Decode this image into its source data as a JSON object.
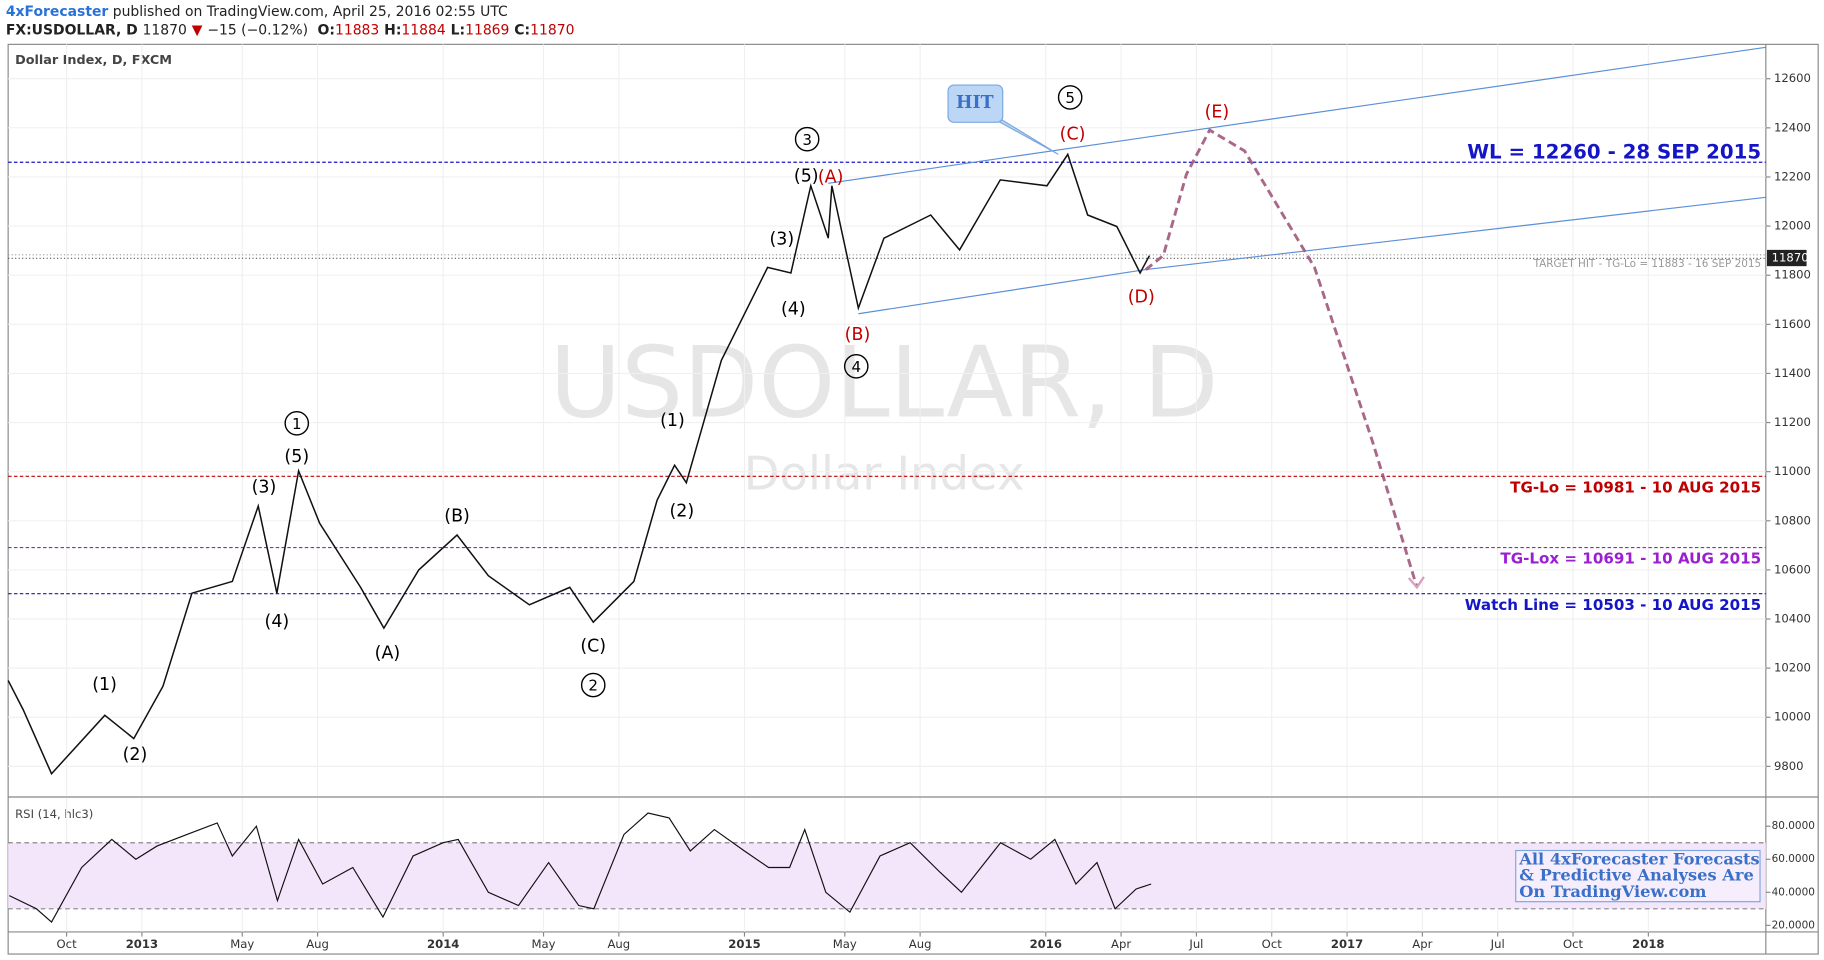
{
  "header": {
    "author": "4xForecaster",
    "published": " published on TradingView.com, April 25, 2016 02:55 UTC",
    "symbol": "FX:USDOLLAR, D",
    "last": "11870",
    "arrow": "▼",
    "change": "−15 (−0.12%)",
    "ohlc": [
      {
        "label": "O:",
        "value": "11883"
      },
      {
        "label": "H:",
        "value": "11884"
      },
      {
        "label": "L:",
        "value": "11869"
      },
      {
        "label": "C:",
        "value": "11870"
      }
    ]
  },
  "chart_data": [
    {
      "type": "line",
      "title": "Dollar Index, D, FXCM",
      "watermark": "USDOLLAR, D",
      "watermark_subtitle": "Dollar Index",
      "color": "#111111",
      "x": [
        2012.556,
        2012.606,
        2012.7,
        2012.877,
        2012.973,
        2013.07,
        2013.166,
        2013.3,
        2013.386,
        2013.448,
        2013.52,
        2013.59,
        2013.726,
        2013.803,
        2013.919,
        2014.046,
        2014.15,
        2014.286,
        2014.42,
        2014.498,
        2014.633,
        2014.71,
        2014.768,
        2014.807,
        2014.923,
        2015.077,
        2015.154,
        2015.22,
        2015.278,
        2015.29,
        2015.378,
        2015.463,
        2015.618,
        2015.714,
        2015.849,
        2016.004,
        2016.073,
        2016.139,
        2016.236,
        2016.313,
        2016.344
      ],
      "values": [
        10150,
        10031,
        9770,
        10008,
        9913,
        10126,
        10505,
        10553,
        10860,
        10505,
        11003,
        10790,
        10529,
        10363,
        10600,
        10742,
        10576,
        10458,
        10529,
        10387,
        10553,
        10884,
        11026,
        10955,
        11453,
        11832,
        11809,
        12164,
        11951,
        12164,
        11666,
        11951,
        12045,
        11903,
        12188,
        12164,
        12292,
        12045,
        11998,
        11809,
        11880
      ],
      "last_value": 11870,
      "xlim": [
        2012.556,
        2018.39
      ],
      "ylim": [
        9680,
        12740
      ],
      "yticks": [
        9800,
        10000,
        10200,
        10400,
        10600,
        10800,
        11000,
        11200,
        11400,
        11600,
        11800,
        12000,
        12200,
        12400,
        12600
      ],
      "xticks": [
        {
          "value": 2012.75,
          "label": "Oct"
        },
        2013,
        {
          "value": 2013.333,
          "label": "May"
        },
        {
          "value": 2013.583,
          "label": "Aug"
        },
        2014,
        {
          "value": 2014.333,
          "label": "May"
        },
        {
          "value": 2014.583,
          "label": "Aug"
        },
        2015,
        {
          "value": 2015.333,
          "label": "May"
        },
        {
          "value": 2015.583,
          "label": "Aug"
        },
        2016,
        {
          "value": 2016.25,
          "label": "Apr"
        },
        {
          "value": 2016.5,
          "label": "Jul"
        },
        {
          "value": 2016.75,
          "label": "Oct"
        },
        2017,
        {
          "value": 2017.25,
          "label": "Apr"
        },
        {
          "value": 2017.5,
          "label": "Jul"
        },
        {
          "value": 2017.75,
          "label": "Oct"
        },
        2018
      ],
      "levels": [
        {
          "value": 12260,
          "label": "WL = 12260 - 28 SEP 2015",
          "color": "#1515c8"
        },
        {
          "value": 11883,
          "label": "TARGET HIT - TG-Lo = 11883 - 16 SEP 2015",
          "color": "#999999"
        },
        {
          "value": 10981,
          "label": "TG-Lo = 10981 - 10 AUG 2015",
          "color": "#c00000"
        },
        {
          "value": 10691,
          "label": "TG-Lox = 10691 - 10 AUG 2015",
          "color": "#9b1fd1"
        },
        {
          "value": 10503,
          "label": "Watch Line = 10503 - 10 AUG 2015",
          "color": "#1515c8"
        }
      ],
      "trendlines": [
        {
          "points": [
            [
              2015.278,
              12174
            ],
            [
              2018.39,
              12728
            ]
          ],
          "color": "#5b8fd8"
        },
        {
          "points": [
            [
              2015.378,
              11643
            ],
            [
              2016.332,
              11823
            ]
          ],
          "color": "#5b8fd8"
        },
        {
          "points": [
            [
              2016.332,
              11823
            ],
            [
              2018.39,
              12117
            ]
          ],
          "color": "#5b8fd8"
        }
      ],
      "forecast": {
        "x": [
          2016.332,
          2016.39,
          2016.467,
          2016.544,
          2016.66,
          2016.892,
          2017.085,
          2017.232
        ],
        "values": [
          11823,
          11880,
          12211,
          12391,
          12306,
          11832,
          11121,
          10529
        ],
        "color": "#9b4d74"
      },
      "callout": {
        "text": "HIT",
        "x": 2016.042,
        "y": 12292
      },
      "annotations": [
        {
          "text": "1",
          "x": 2013.514,
          "y": 11197,
          "color": "#000000",
          "circled": true
        },
        {
          "text": "(5)",
          "x": 2013.514,
          "y": 11065,
          "color": "#000000",
          "circled": false
        },
        {
          "text": "(3)",
          "x": 2013.405,
          "y": 10941,
          "color": "#000000",
          "circled": false
        },
        {
          "text": "(4)",
          "x": 2013.448,
          "y": 10392,
          "color": "#000000",
          "circled": false
        },
        {
          "text": "(1)",
          "x": 2012.876,
          "y": 10136,
          "color": "#000000",
          "circled": false
        },
        {
          "text": "(2)",
          "x": 2012.977,
          "y": 9851,
          "color": "#000000",
          "circled": false
        },
        {
          "text": "(B)",
          "x": 2014.046,
          "y": 10823,
          "color": "#000000",
          "circled": false
        },
        {
          "text": "(A)",
          "x": 2013.815,
          "y": 10264,
          "color": "#000000",
          "circled": false
        },
        {
          "text": "(C)",
          "x": 2014.498,
          "y": 10292,
          "color": "#000000",
          "circled": false
        },
        {
          "text": "2",
          "x": 2014.498,
          "y": 10131,
          "color": "#000000",
          "circled": true
        },
        {
          "text": "(1)",
          "x": 2014.761,
          "y": 11211,
          "color": "#000000",
          "circled": false
        },
        {
          "text": "(2)",
          "x": 2014.792,
          "y": 10842,
          "color": "#000000",
          "circled": false
        },
        {
          "text": "(3)",
          "x": 2015.124,
          "y": 11951,
          "color": "#000000",
          "circled": false
        },
        {
          "text": "(4)",
          "x": 2015.162,
          "y": 11666,
          "color": "#000000",
          "circled": false
        },
        {
          "text": "(5)",
          "x": 2015.205,
          "y": 12207,
          "color": "#000000",
          "circled": false
        },
        {
          "text": "3",
          "x": 2015.208,
          "y": 12354,
          "color": "#000000",
          "circled": true
        },
        {
          "text": "(A)",
          "x": 2015.286,
          "y": 12202,
          "color": "#c00000",
          "circled": false
        },
        {
          "text": "(B)",
          "x": 2015.375,
          "y": 11562,
          "color": "#c00000",
          "circled": false
        },
        {
          "text": "4",
          "x": 2015.371,
          "y": 11429,
          "color": "#000000",
          "circled": true
        },
        {
          "text": "(C)",
          "x": 2016.089,
          "y": 12377,
          "color": "#c00000",
          "circled": false
        },
        {
          "text": "5",
          "x": 2016.081,
          "y": 12524,
          "color": "#000000",
          "circled": true
        },
        {
          "text": "(D)",
          "x": 2016.317,
          "y": 11714,
          "color": "#c00000",
          "circled": false
        },
        {
          "text": "(E)",
          "x": 2016.568,
          "y": 12467,
          "color": "#c00000",
          "circled": false
        }
      ]
    },
    {
      "type": "line",
      "title": "RSI (14, hlc3)",
      "color": "#111111",
      "x": [
        2012.56,
        2012.65,
        2012.7,
        2012.8,
        2012.9,
        2012.98,
        2013.05,
        2013.15,
        2013.25,
        2013.3,
        2013.38,
        2013.45,
        2013.52,
        2013.6,
        2013.7,
        2013.8,
        2013.9,
        2014.0,
        2014.05,
        2014.15,
        2014.25,
        2014.35,
        2014.45,
        2014.5,
        2014.6,
        2014.68,
        2014.75,
        2014.82,
        2014.9,
        2015.0,
        2015.08,
        2015.15,
        2015.2,
        2015.27,
        2015.35,
        2015.45,
        2015.55,
        2015.65,
        2015.72,
        2015.85,
        2015.95,
        2016.03,
        2016.1,
        2016.17,
        2016.23,
        2016.3,
        2016.35
      ],
      "values": [
        38,
        30,
        22,
        55,
        72,
        60,
        68,
        75,
        82,
        62,
        80,
        35,
        72,
        45,
        55,
        25,
        62,
        70,
        72,
        40,
        32,
        58,
        32,
        30,
        75,
        88,
        85,
        65,
        78,
        65,
        55,
        55,
        78,
        40,
        28,
        62,
        70,
        52,
        40,
        70,
        60,
        72,
        45,
        58,
        30,
        42,
        45
      ],
      "ylim": [
        16,
        97
      ],
      "yticks": [
        {
          "value": 20,
          "label": "20.0000"
        },
        {
          "value": 40,
          "label": "40.0000"
        },
        {
          "value": 60,
          "label": "60.0000"
        },
        {
          "value": 80,
          "label": "80.0000"
        }
      ],
      "bands": [
        30,
        70
      ],
      "note": [
        "All 4xForecaster Forecasts",
        "& Predictive Analyses Are",
        "On TradingView.com"
      ]
    }
  ]
}
